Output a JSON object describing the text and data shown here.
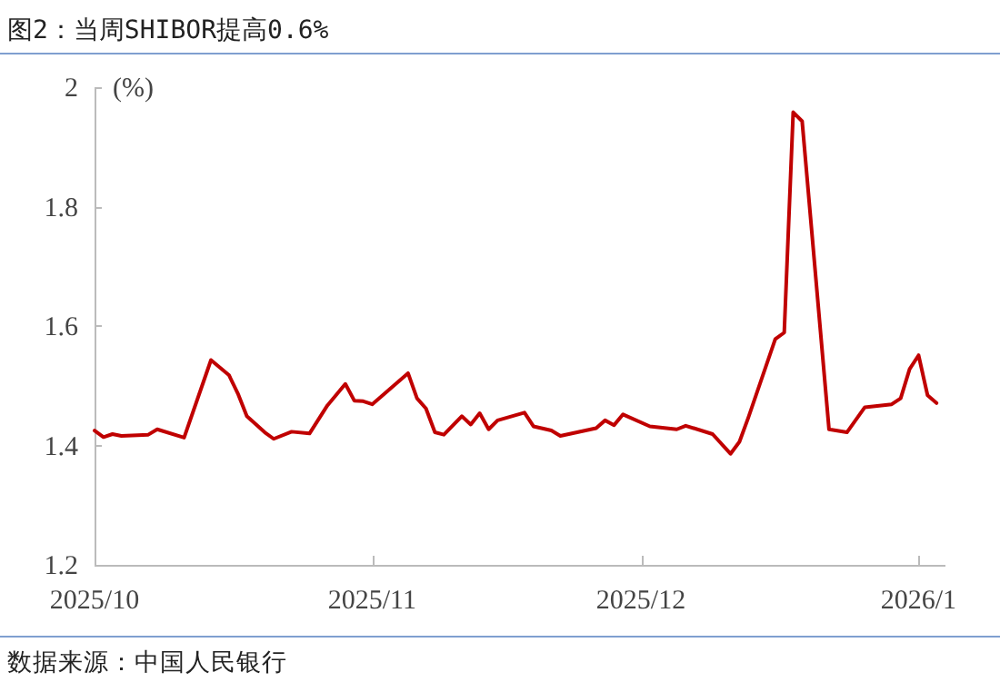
{
  "chart_data": {
    "type": "line",
    "title": "图2：当周SHIBOR提高0.6%",
    "ylabel": "(%)",
    "annotations": [
      "数据来源：中国人民银行"
    ],
    "x": [
      "2025-10-01",
      "2025-10-02",
      "2025-10-03",
      "2025-10-04",
      "2025-10-07",
      "2025-10-08",
      "2025-10-11",
      "2025-10-14",
      "2025-10-16",
      "2025-10-17",
      "2025-10-18",
      "2025-10-20",
      "2025-10-21",
      "2025-10-23",
      "2025-10-25",
      "2025-10-27",
      "2025-10-29",
      "2025-10-30",
      "2025-10-31",
      "2025-11-01",
      "2025-11-05",
      "2025-11-06",
      "2025-11-07",
      "2025-11-08",
      "2025-11-09",
      "2025-11-11",
      "2025-11-12",
      "2025-11-13",
      "2025-11-14",
      "2025-11-15",
      "2025-11-18",
      "2025-11-19",
      "2025-11-21",
      "2025-11-22",
      "2025-11-26",
      "2025-11-27",
      "2025-11-28",
      "2025-11-29",
      "2025-12-02",
      "2025-12-05",
      "2025-12-06",
      "2025-12-09",
      "2025-12-11",
      "2025-12-12",
      "2025-12-13",
      "2025-12-16",
      "2025-12-17",
      "2025-12-18",
      "2025-12-19",
      "2025-12-22",
      "2025-12-24",
      "2025-12-26",
      "2025-12-29",
      "2025-12-30",
      "2025-12-31",
      "2026-01-01",
      "2026-01-02",
      "2026-01-03"
    ],
    "series": [
      {
        "color": "#c00000",
        "values": [
          1.425,
          1.414,
          1.419,
          1.416,
          1.418,
          1.427,
          1.413,
          1.543,
          1.518,
          1.487,
          1.449,
          1.422,
          1.411,
          1.423,
          1.42,
          1.467,
          1.503,
          1.475,
          1.474,
          1.469,
          1.521,
          1.479,
          1.462,
          1.422,
          1.418,
          1.449,
          1.435,
          1.454,
          1.427,
          1.442,
          1.455,
          1.432,
          1.425,
          1.416,
          1.429,
          1.442,
          1.434,
          1.452,
          1.432,
          1.427,
          1.433,
          1.419,
          1.386,
          1.406,
          1.447,
          1.578,
          1.589,
          1.958,
          1.943,
          1.427,
          1.422,
          1.464,
          1.469,
          1.479,
          1.528,
          1.551,
          1.484,
          1.471
        ]
      }
    ],
    "xlim": [
      "2025-10-01",
      "2026-01-04"
    ],
    "xticks": [
      {
        "value": "2025-10-01",
        "label": "2025/10"
      },
      {
        "value": "2025-11-01",
        "label": "2025/11"
      },
      {
        "value": "2025-12-01",
        "label": "2025/12"
      },
      {
        "value": "2026-01-01",
        "label": "2026/1"
      }
    ],
    "ylim": [
      1.2,
      2
    ],
    "yticks": [
      {
        "value": 1.2,
        "label": "1.2"
      },
      {
        "value": 1.4,
        "label": "1.4"
      },
      {
        "value": 1.6,
        "label": "1.6"
      },
      {
        "value": 1.8,
        "label": "1.8"
      },
      {
        "value": 2,
        "label": "2"
      }
    ],
    "grid": false,
    "marker": "none",
    "line_style": "solid"
  }
}
